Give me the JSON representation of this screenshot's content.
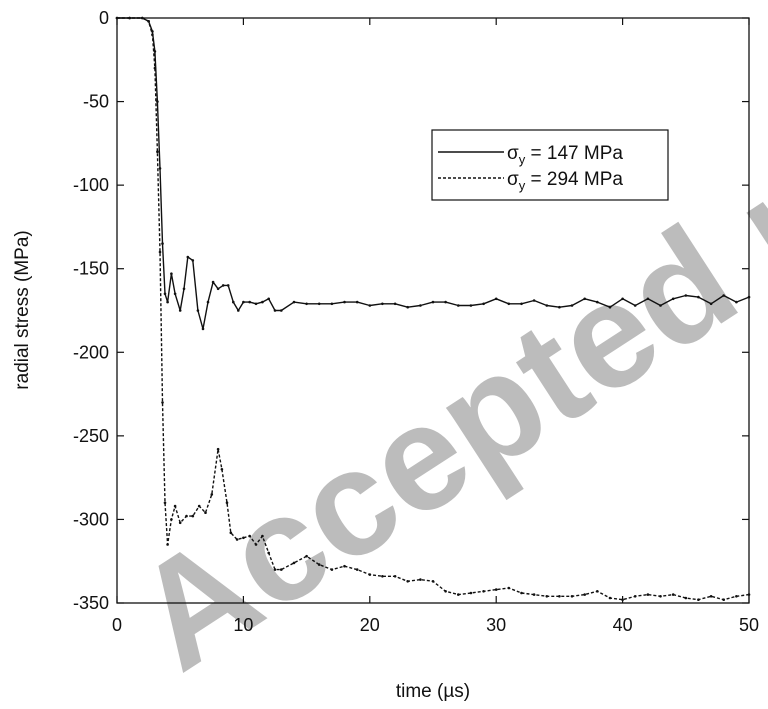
{
  "chart_data": {
    "type": "line",
    "xlabel": "time (µs)",
    "ylabel": "radial stress (MPa)",
    "xlim": [
      0,
      50
    ],
    "ylim": [
      -350,
      0
    ],
    "xticks": [
      0,
      10,
      20,
      30,
      40,
      50
    ],
    "yticks": [
      0,
      -50,
      -100,
      -150,
      -200,
      -250,
      -300,
      -350
    ],
    "grid": false,
    "legend_position": "upper right",
    "series": [
      {
        "name": "σy = 147 MPa",
        "name_main": "σ",
        "name_sub": "y",
        "name_rest": " = 147 MPa",
        "style": "solid",
        "x": [
          0,
          1,
          2,
          2.5,
          2.8,
          3.0,
          3.2,
          3.4,
          3.6,
          3.8,
          4.0,
          4.3,
          4.6,
          5.0,
          5.3,
          5.6,
          6.0,
          6.4,
          6.8,
          7.2,
          7.6,
          8.0,
          8.4,
          8.8,
          9.2,
          9.6,
          10.0,
          10.5,
          11.0,
          11.5,
          12.0,
          12.5,
          13.0,
          14.0,
          15.0,
          16.0,
          17.0,
          18.0,
          19.0,
          20.0,
          21.0,
          22.0,
          23.0,
          24.0,
          25.0,
          26.0,
          27.0,
          28.0,
          29.0,
          30.0,
          31.0,
          32.0,
          33.0,
          34.0,
          35.0,
          36.0,
          37.0,
          38.0,
          39.0,
          40.0,
          41.0,
          42.0,
          43.0,
          44.0,
          45.0,
          46.0,
          47.0,
          48.0,
          49.0,
          50.0
        ],
        "y": [
          0,
          0,
          0,
          -2,
          -8,
          -20,
          -50,
          -90,
          -135,
          -165,
          -170,
          -153,
          -165,
          -175,
          -162,
          -143,
          -145,
          -175,
          -186,
          -170,
          -158,
          -162,
          -160,
          -160,
          -170,
          -175,
          -170,
          -170,
          -171,
          -170,
          -168,
          -175,
          -175,
          -170,
          -171,
          -171,
          -171,
          -170,
          -170,
          -172,
          -171,
          -171,
          -173,
          -172,
          -170,
          -170,
          -172,
          -172,
          -171,
          -168,
          -171,
          -171,
          -169,
          -172,
          -173,
          -172,
          -168,
          -170,
          -173,
          -168,
          -172,
          -168,
          -172,
          -168,
          -166,
          -167,
          -171,
          -166,
          -170,
          -167
        ]
      },
      {
        "name": "σy = 294 MPa",
        "name_main": "σ",
        "name_sub": "y",
        "name_rest": " = 294 MPa",
        "style": "dashed",
        "x": [
          0,
          1,
          2,
          2.5,
          2.8,
          3.0,
          3.2,
          3.4,
          3.6,
          3.8,
          4.0,
          4.3,
          4.6,
          5.0,
          5.5,
          6.0,
          6.5,
          7.0,
          7.5,
          8.0,
          8.3,
          8.7,
          9.0,
          9.5,
          10.0,
          10.5,
          11.0,
          11.5,
          12.0,
          12.5,
          13.0,
          14.0,
          15.0,
          16.0,
          17.0,
          18.0,
          19.0,
          20.0,
          21.0,
          22.0,
          23.0,
          24.0,
          25.0,
          26.0,
          27.0,
          28.0,
          29.0,
          30.0,
          31.0,
          32.0,
          33.0,
          34.0,
          35.0,
          36.0,
          37.0,
          38.0,
          39.0,
          40.0,
          41.0,
          42.0,
          43.0,
          44.0,
          45.0,
          46.0,
          47.0,
          48.0,
          49.0,
          50.0
        ],
        "y": [
          0,
          0,
          0,
          -2,
          -10,
          -30,
          -80,
          -140,
          -230,
          -290,
          -315,
          -300,
          -292,
          -302,
          -298,
          -298,
          -292,
          -296,
          -285,
          -258,
          -270,
          -290,
          -308,
          -312,
          -311,
          -310,
          -315,
          -310,
          -320,
          -330,
          -330,
          -326,
          -322,
          -327,
          -330,
          -328,
          -330,
          -333,
          -334,
          -334,
          -337,
          -336,
          -337,
          -343,
          -345,
          -344,
          -343,
          -342,
          -341,
          -344,
          -345,
          -346,
          -346,
          -346,
          -345,
          -343,
          -347,
          -348,
          -346,
          -345,
          -346,
          -345,
          -347,
          -348,
          -346,
          -348,
          -346,
          -345
        ]
      }
    ]
  },
  "watermark": "Accepted manuscript"
}
